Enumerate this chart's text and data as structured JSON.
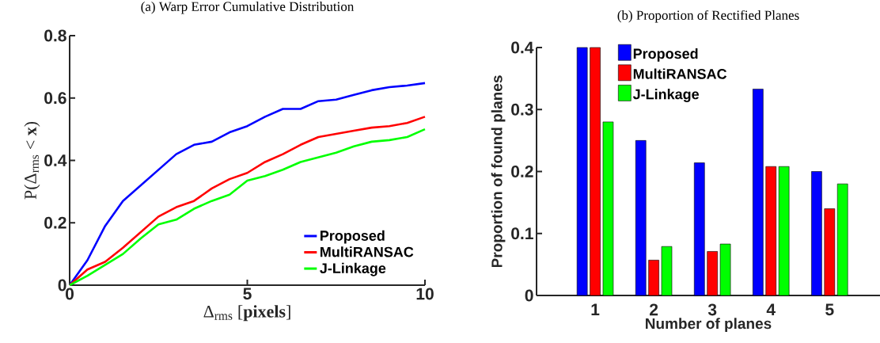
{
  "chart_data": [
    {
      "type": "line",
      "title": "(a) Warp Error Cumulative Distribution",
      "xlabel": "Δ$_{rms}$ [**pixels**]",
      "ylabel": "P(Δ$_{rms}$ < **x**)",
      "x": [
        0,
        0.5,
        1,
        1.5,
        2,
        2.5,
        3,
        3.5,
        4,
        4.5,
        5,
        5.5,
        6,
        6.5,
        7,
        7.5,
        8,
        8.5,
        9,
        9.5,
        10
      ],
      "series": [
        {
          "name": "Proposed",
          "color": "#0000ff",
          "values": [
            0,
            0.08,
            0.19,
            0.27,
            0.32,
            0.37,
            0.42,
            0.45,
            0.46,
            0.49,
            0.51,
            0.54,
            0.565,
            0.565,
            0.59,
            0.595,
            0.61,
            0.625,
            0.635,
            0.64,
            0.648
          ]
        },
        {
          "name": "MultiRANSAC",
          "color": "#ff0000",
          "values": [
            0,
            0.05,
            0.075,
            0.12,
            0.17,
            0.22,
            0.25,
            0.27,
            0.31,
            0.34,
            0.36,
            0.395,
            0.42,
            0.45,
            0.475,
            0.485,
            0.495,
            0.505,
            0.51,
            0.52,
            0.54
          ]
        },
        {
          "name": "J-Linkage",
          "color": "#00ff00",
          "values": [
            0,
            0.03,
            0.065,
            0.1,
            0.15,
            0.195,
            0.21,
            0.245,
            0.27,
            0.29,
            0.335,
            0.35,
            0.37,
            0.395,
            0.41,
            0.425,
            0.445,
            0.46,
            0.465,
            0.475,
            0.5
          ]
        }
      ],
      "xlim": [
        0,
        10
      ],
      "ylim": [
        0,
        0.8
      ],
      "xticks": [
        0,
        5,
        10
      ],
      "yticks": [
        0,
        0.2,
        0.4,
        0.6,
        0.8
      ],
      "legend": "bottom right"
    },
    {
      "type": "bar",
      "title": "(b) Proportion of Rectified Planes",
      "xlabel": "Number of planes",
      "ylabel": "Proportion of found planes",
      "categories": [
        "1",
        "2",
        "3",
        "4",
        "5"
      ],
      "series": [
        {
          "name": "Proposed",
          "color": "#0000ff",
          "values": [
            0.4,
            0.25,
            0.214,
            0.333,
            0.2
          ]
        },
        {
          "name": "MultiRANSAC",
          "color": "#ff0000",
          "values": [
            0.4,
            0.057,
            0.071,
            0.208,
            0.14
          ]
        },
        {
          "name": "J-Linkage",
          "color": "#00ff00",
          "values": [
            0.28,
            0.079,
            0.083,
            0.208,
            0.18
          ]
        }
      ],
      "ylim": [
        0,
        0.4
      ],
      "yticks": [
        0,
        0.1,
        0.2,
        0.3,
        0.4
      ],
      "legend": "top"
    }
  ]
}
